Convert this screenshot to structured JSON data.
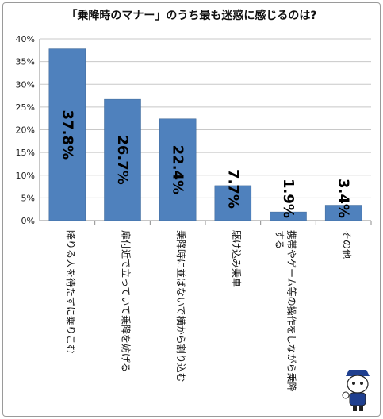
{
  "chart_data": {
    "type": "bar",
    "title": "「乗降時のマナー」のうち最も迷惑に感じるのは?",
    "categories": [
      [
        "降りる人を待たずに乗りこむ"
      ],
      [
        "扉付近で立っていて乗降を妨げる"
      ],
      [
        "乗降時に並ばないで横から割り込む"
      ],
      [
        "駆け込み乗車"
      ],
      [
        "携帯やゲーム等の操作をしながら乗降",
        "する"
      ],
      [
        "その他"
      ]
    ],
    "values": [
      37.8,
      26.7,
      22.4,
      7.7,
      1.9,
      3.4
    ],
    "data_labels": [
      "37.8%",
      "26.7%",
      "22.4%",
      "7.7%",
      "1.9%",
      "3.4%"
    ],
    "ylim": [
      0,
      40
    ],
    "yticks": [
      "0%",
      "5%",
      "10%",
      "15%",
      "20%",
      "25%",
      "30%",
      "35%",
      "40%"
    ],
    "grid": true,
    "colors": {
      "bar": "#4f81bd",
      "bar_edge": "#3a6594",
      "grid": "#c8c8c8",
      "axis": "#8c8c8c"
    }
  },
  "mascot_icon": "mascot-character-icon"
}
